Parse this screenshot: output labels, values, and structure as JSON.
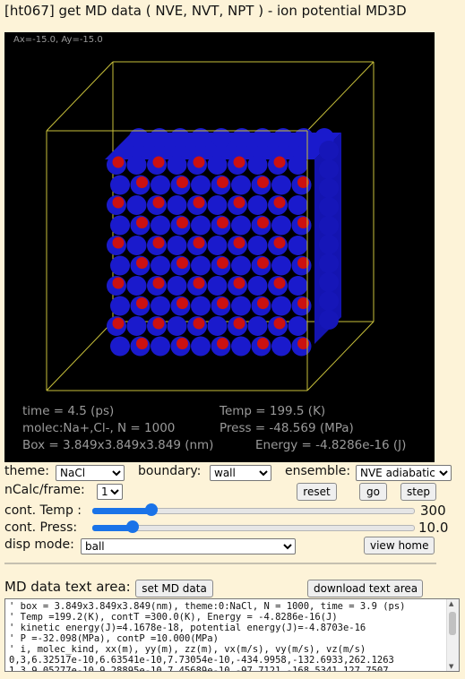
{
  "window": {
    "title": "[ht067] get MD data ( NVE, NVT, NPT ) - ion potential MD3D"
  },
  "viewport": {
    "coords": "Ax=-15.0, Ay=-15.0",
    "time": "time = 4.5 (ps)",
    "temp": "Temp = 199.5 (K)",
    "molec": "molec:Na+,Cl-, N = 1000",
    "press": "Press = -48.569 (MPa)",
    "box": "Box = 3.849x3.849x3.849 (nm)",
    "energy": "Energy = -4.8286e-16 (J)"
  },
  "controls": {
    "theme_label": "theme:",
    "theme_value": "NaCl",
    "boundary_label": "boundary:",
    "boundary_value": "wall",
    "ensemble_label": "ensemble:",
    "ensemble_value": "NVE adiabatic",
    "ncalc_label": "nCalc/frame:",
    "ncalc_value": "1",
    "reset": "reset",
    "go": "go",
    "step": "step",
    "cont_temp_label": "cont. Temp :",
    "cont_temp_value": "300",
    "cont_temp_level": 0.17,
    "cont_press_label": "cont. Press:",
    "cont_press_value": "10.0",
    "cont_press_level": 0.11,
    "disp_mode_label": "disp mode:",
    "disp_mode_value": "ball",
    "view_home": "view home"
  },
  "md": {
    "label": "MD data text area:",
    "set_button": "set MD data",
    "download_button": "download text area",
    "text": "' box = 3.849x3.849x3.849(nm), theme:0:NaCl, N = 1000, time = 3.9 (ps)\n' Temp =199.2(K), contT =300.0(K), Energy = -4.8286e-16(J)\n' kinetic energy(J)=4.1678e-18, potential energy(J)=-4.8703e-16\n' P =-32.098(MPa), contP =10.000(MPa)\n' i, molec_kind, xx(m), yy(m), zz(m), vx(m/s), vy(m/s), vz(m/s)\n0,3,6.32517e-10,6.63541e-10,7.73054e-10,-434.9958,-132.6933,262.1263\n1,3,9.05277e-10,9.28895e-10,7.45689e-10,-97.7121,-168.5341,127.7507"
  },
  "colors": {
    "background": "#fdf3d8",
    "viewport_bg": "#000000",
    "box_line": "#c8c03a",
    "na_ion": "#1a1acc",
    "cl_ion": "#cc1111",
    "slider_accent": "#1a73e8"
  }
}
